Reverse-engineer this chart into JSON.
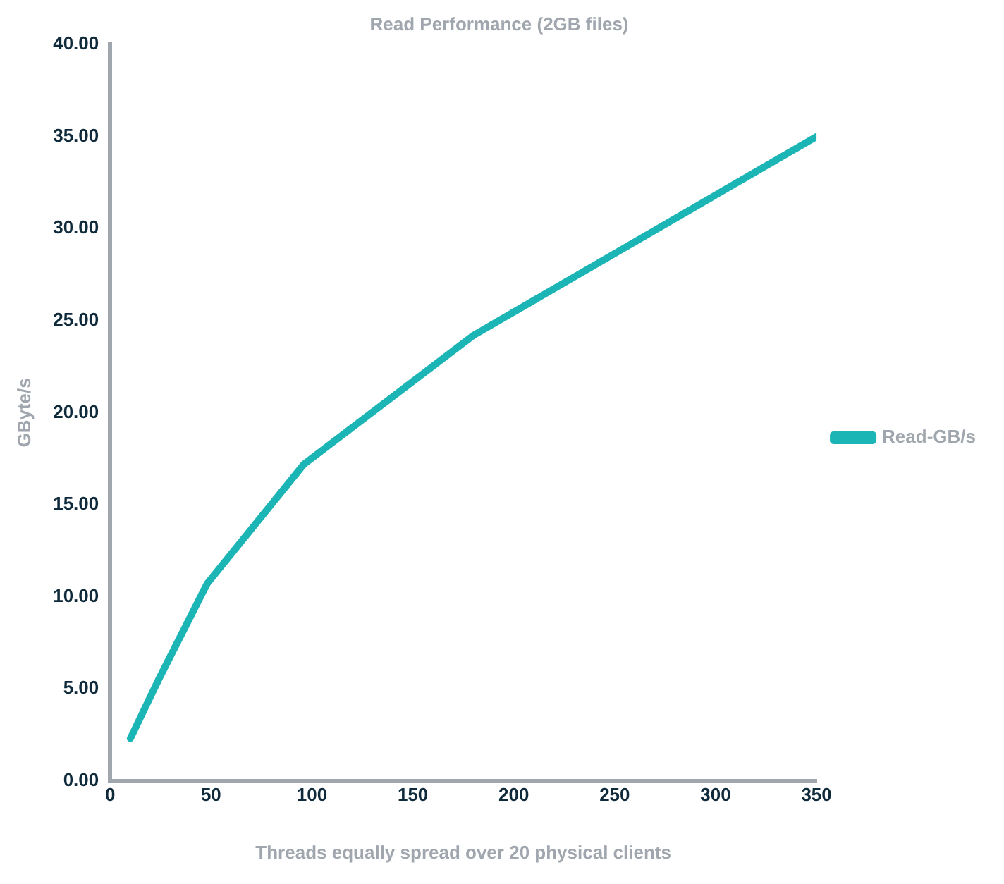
{
  "chart_data": {
    "type": "line",
    "title": "Read Performance (2GB files)",
    "xlabel": "Threads equally spread over 20 physical clients",
    "ylabel": "GByte/s",
    "x": [
      10,
      24,
      48,
      96,
      180,
      350
    ],
    "series": [
      {
        "name": "Read-GB/s",
        "color": "#1cb5b5",
        "values": [
          2.3,
          5.5,
          10.7,
          17.2,
          24.2,
          35.0
        ]
      }
    ],
    "xlim": [
      0,
      350
    ],
    "xticks": [
      0,
      50,
      100,
      150,
      200,
      250,
      300,
      350
    ],
    "ylim": [
      0,
      40
    ],
    "yticks": [
      {
        "value": 0,
        "label": "0.00"
      },
      {
        "value": 5,
        "label": "5.00"
      },
      {
        "value": 10,
        "label": "10.00"
      },
      {
        "value": 15,
        "label": "15.00"
      },
      {
        "value": 20,
        "label": "20.00"
      },
      {
        "value": 25,
        "label": "25.00"
      },
      {
        "value": 30,
        "label": "30.00"
      },
      {
        "value": 35,
        "label": "35.00"
      },
      {
        "value": 40,
        "label": "40.00"
      }
    ],
    "grid": false,
    "legend": "right",
    "marker": "none",
    "line_style": "solid"
  }
}
